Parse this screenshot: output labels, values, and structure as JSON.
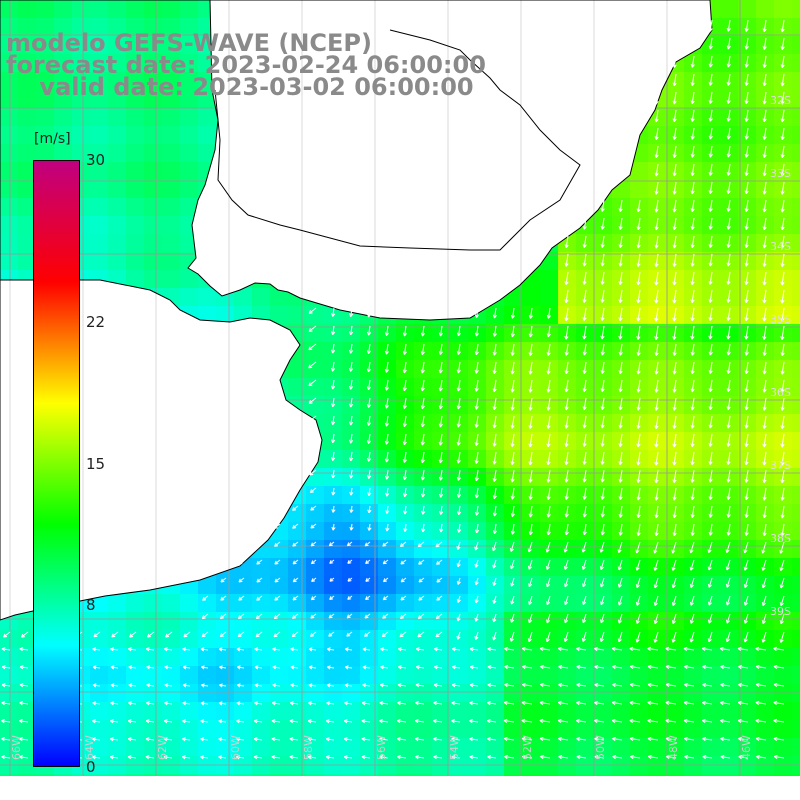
{
  "title": {
    "line1": "modelo GEFS-WAVE (NCEP)",
    "line2": "forecast date: 2023-02-24 06:00:00",
    "line3": "    valid date: 2023-03-02 06:00:00"
  },
  "colorbar": {
    "unit": "[m/s]",
    "ticks": [
      "30",
      "22",
      "15",
      "8",
      "0"
    ],
    "tick_values": [
      30,
      22,
      15,
      8,
      0
    ],
    "range": [
      0,
      30
    ],
    "stops": [
      "#0000ff",
      "#00ffff",
      "#00ff00",
      "#ffff00",
      "#ff0000",
      "#c00080"
    ]
  },
  "map": {
    "lon_labels": [
      "66W",
      "64W",
      "62W",
      "60W",
      "58W",
      "56W",
      "54W",
      "52W",
      "50W",
      "48W",
      "46W"
    ],
    "lat_labels": [
      "32S",
      "33S",
      "34S",
      "35S",
      "36S",
      "37S",
      "38S",
      "39S"
    ],
    "field": "wind speed",
    "land_color": "#ffffff",
    "grid_color": "#999999",
    "vector_color": "#ffffff"
  }
}
